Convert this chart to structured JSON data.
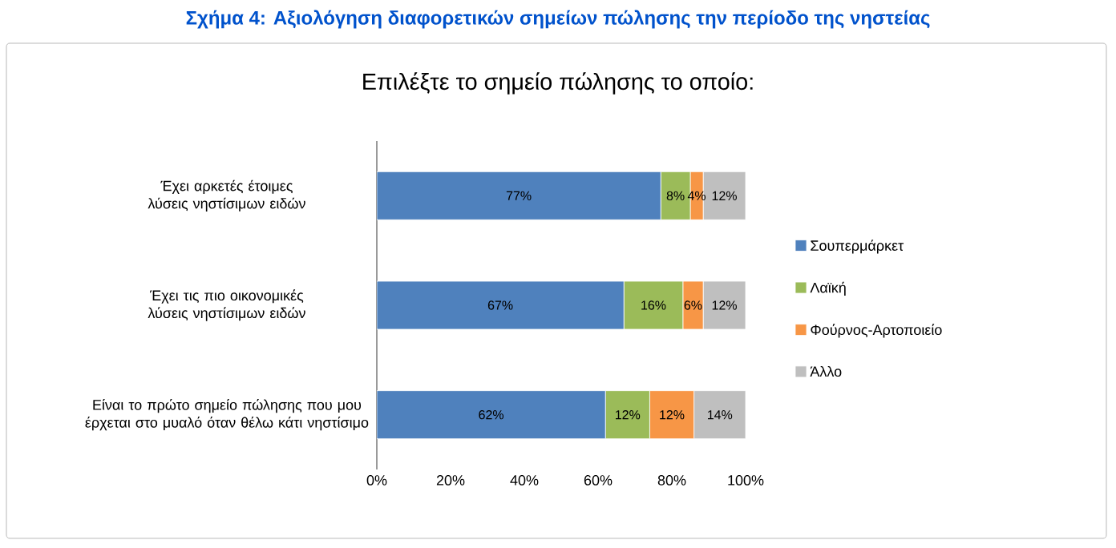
{
  "chart_data": {
    "type": "bar",
    "orientation": "horizontal",
    "stacked": true,
    "title": "Επιλέξτε το σημείο πώλησης το οποίο:",
    "annotations": [
      "Σχήμα 4: Αξιολόγηση διαφορετικών σημείων πώλησης την περίοδο της νηστείας"
    ],
    "categories": [
      "Έχει αρκετές έτοιμες λύσεις νηστίσιμων ειδών",
      "Έχει τις πιο οικονομικές λύσεις νηστίσιμων ειδών",
      "Είναι το πρώτο σημείο πώλησης που μου έρχεται στο μυαλό όταν θέλω κάτι νηστίσιμο"
    ],
    "series": [
      {
        "name": "Σουπερμάρκετ",
        "color": "#4f81bd",
        "values": [
          77,
          67,
          62
        ],
        "value_labels": [
          "77%",
          "67%",
          "62%"
        ]
      },
      {
        "name": "Λαϊκή",
        "color": "#9bbb59",
        "values": [
          8,
          16,
          12
        ],
        "value_labels": [
          "8%",
          "16%",
          "12%"
        ]
      },
      {
        "name": "Φούρνος-Αρτοποιείο",
        "color": "#f79646",
        "values": [
          3.5,
          5.5,
          12
        ],
        "value_labels": [
          "4%",
          "6%",
          "12%"
        ]
      },
      {
        "name": "Άλλο",
        "color": "#bfbfbf",
        "values": [
          11.5,
          11.5,
          14
        ],
        "value_labels": [
          "12%",
          "12%",
          "14%"
        ]
      }
    ],
    "xlim": [
      0,
      100
    ],
    "xticks": [
      {
        "value": 0,
        "label": "0%"
      },
      {
        "value": 20,
        "label": "20%"
      },
      {
        "value": 40,
        "label": "40%"
      },
      {
        "value": 60,
        "label": "60%"
      },
      {
        "value": 80,
        "label": "80%"
      },
      {
        "value": 100,
        "label": "100%"
      }
    ],
    "grid": false,
    "legend": "right"
  }
}
